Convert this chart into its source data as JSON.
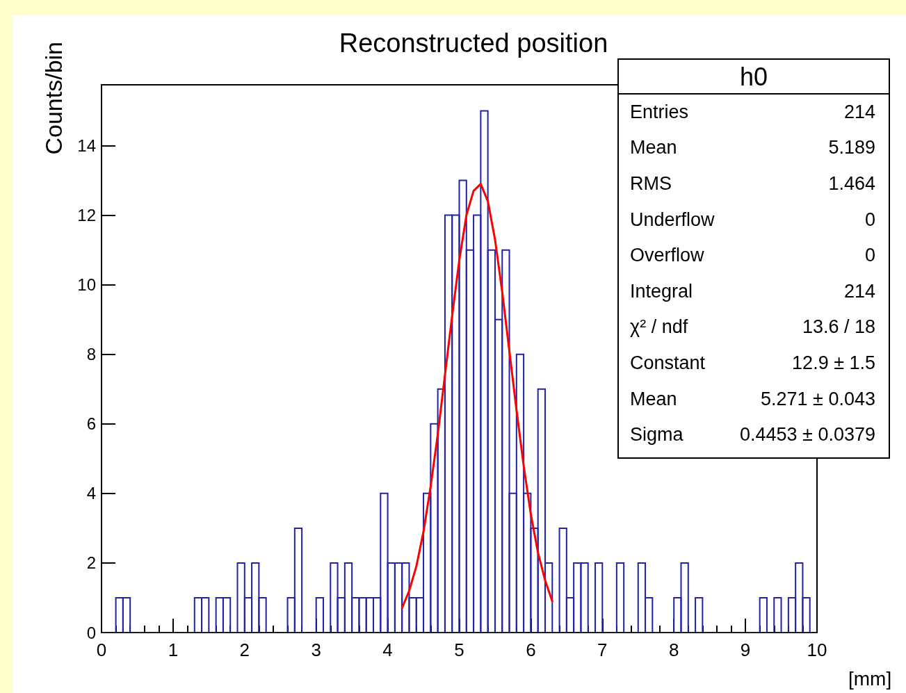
{
  "chart_data": {
    "type": "histogram",
    "title": "Reconstructed position",
    "xlabel": "[mm]",
    "ylabel": "Counts/bin",
    "bins": [
      0,
      0.1,
      0.2,
      0.3,
      0.4,
      0.5,
      0.6,
      0.7,
      0.8,
      0.9,
      1,
      1.1,
      1.2,
      1.3,
      1.4,
      1.5,
      1.6,
      1.7,
      1.8,
      1.9,
      2,
      2.1,
      2.2,
      2.3,
      2.4,
      2.5,
      2.6,
      2.7,
      2.8,
      2.9,
      3,
      3.1,
      3.2,
      3.3,
      3.4,
      3.5,
      3.6,
      3.7,
      3.8,
      3.9,
      4,
      4.1,
      4.2,
      4.3,
      4.4,
      4.5,
      4.6,
      4.7,
      4.8,
      4.9,
      5,
      5.1,
      5.2,
      5.3,
      5.4,
      5.5,
      5.6,
      5.7,
      5.8,
      5.9,
      6,
      6.1,
      6.2,
      6.3,
      6.4,
      6.5,
      6.6,
      6.7,
      6.8,
      6.9,
      7,
      7.1,
      7.2,
      7.3,
      7.4,
      7.5,
      7.6,
      7.7,
      7.8,
      7.9,
      8,
      8.1,
      8.2,
      8.3,
      8.4,
      8.5,
      8.6,
      8.7,
      8.8,
      8.9,
      9,
      9.1,
      9.2,
      9.3,
      9.4,
      9.5,
      9.6,
      9.7,
      9.8,
      9.9,
      10
    ],
    "values": [
      0,
      0,
      1,
      1,
      0,
      0,
      0,
      0,
      0,
      0,
      0,
      0,
      0,
      1,
      1,
      0,
      1,
      1,
      0,
      2,
      1,
      2,
      1,
      0,
      0,
      0,
      1,
      3,
      0,
      0,
      1,
      0,
      2,
      1,
      2,
      1,
      1,
      1,
      1,
      4,
      2,
      2,
      2,
      1,
      1,
      4,
      6,
      7,
      12,
      12,
      13,
      11,
      12,
      15,
      11,
      9,
      11,
      4,
      8,
      4,
      3,
      7,
      2,
      0,
      3,
      1,
      2,
      2,
      0,
      2,
      0,
      0,
      2,
      0,
      0,
      2,
      1,
      0,
      0,
      0,
      1,
      2,
      0,
      1,
      0,
      0,
      0,
      0,
      0,
      0,
      0,
      0,
      1,
      0,
      1,
      0,
      1,
      2,
      1,
      0
    ],
    "color": "#2222aa",
    "series": [
      {
        "type": "line",
        "color": "#ff0000",
        "x": [
          4.2,
          4.3,
          4.4,
          4.5,
          4.6,
          4.7,
          4.8,
          4.9,
          5.0,
          5.1,
          5.2,
          5.3,
          5.4,
          5.5,
          5.6,
          5.7,
          5.8,
          5.9,
          6.0,
          6.1,
          6.2,
          6.3
        ],
        "values": [
          0.7,
          1.2,
          1.9,
          2.9,
          4.2,
          5.7,
          7.4,
          9.1,
          10.7,
          12.0,
          12.7,
          12.9,
          12.4,
          11.3,
          9.8,
          8.1,
          6.4,
          4.8,
          3.4,
          2.3,
          1.5,
          0.9
        ]
      }
    ],
    "xlim": [
      0,
      10
    ],
    "xticks": [
      0,
      1,
      2,
      3,
      4,
      5,
      6,
      7,
      8,
      9,
      10
    ],
    "ylim": [
      0,
      15.75
    ],
    "yticks": [
      0,
      2,
      4,
      6,
      8,
      10,
      12,
      14
    ],
    "annotations": [
      "h0",
      "Entries",
      "214",
      "Mean",
      "5.189",
      "RMS",
      "1.464",
      "Underflow",
      "0",
      "Overflow",
      "0",
      "Integral",
      "214",
      "χ² / ndf",
      "13.6 / 18",
      "Constant",
      "12.9 ± 1.5",
      "Mean",
      "5.271 ± 0.043",
      "Sigma",
      "0.4453 ± 0.0379"
    ]
  }
}
